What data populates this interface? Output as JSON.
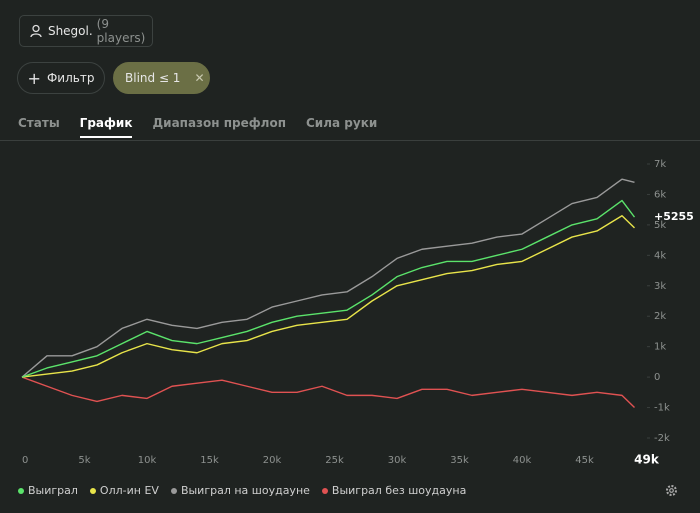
{
  "header": {
    "player": "Shegol.",
    "players_note": "(9 players)"
  },
  "filters": {
    "add": "Фильтр",
    "chip": "Blind ≤ 1"
  },
  "tabs": [
    "Статы",
    "График",
    "Диапазон префлоп",
    "Сила руки"
  ],
  "active_tab": 1,
  "chart_data": {
    "type": "line",
    "x": [
      0,
      2000,
      4000,
      6000,
      8000,
      10000,
      12000,
      14000,
      16000,
      18000,
      20000,
      22000,
      24000,
      26000,
      28000,
      30000,
      32000,
      34000,
      36000,
      38000,
      40000,
      42000,
      44000,
      46000,
      48000,
      49000
    ],
    "xlim": [
      0,
      50000
    ],
    "xticks": [
      0,
      {
        "value": 5000,
        "label": "5k"
      },
      {
        "value": 10000,
        "label": "10k"
      },
      {
        "value": 15000,
        "label": "15k"
      },
      {
        "value": 20000,
        "label": "20k"
      },
      {
        "value": 25000,
        "label": "25k"
      },
      {
        "value": 30000,
        "label": "30k"
      },
      {
        "value": 35000,
        "label": "35k"
      },
      {
        "value": 40000,
        "label": "40k"
      },
      {
        "value": 45000,
        "label": "45k"
      },
      {
        "value": 49000,
        "label": "49k"
      }
    ],
    "ylim": [
      -2000,
      7000
    ],
    "yticks": [
      {
        "value": -2000,
        "label": "-2k"
      },
      {
        "value": -1000,
        "label": "-1k"
      },
      0,
      {
        "value": 1000,
        "label": "1k"
      },
      {
        "value": 2000,
        "label": "2k"
      },
      {
        "value": 3000,
        "label": "3k"
      },
      {
        "value": 4000,
        "label": "4k"
      },
      {
        "value": 5000,
        "label": "5k"
      },
      {
        "value": 6000,
        "label": "6k"
      },
      {
        "value": 7000,
        "label": "7k"
      }
    ],
    "series": [
      {
        "name": "Выиграл",
        "color": "#5be36b",
        "end_label": "+5255",
        "values": [
          0,
          300,
          500,
          700,
          1100,
          1500,
          1200,
          1100,
          1300,
          1500,
          1800,
          2000,
          2100,
          2200,
          2700,
          3300,
          3600,
          3800,
          3800,
          4000,
          4200,
          4600,
          5000,
          5200,
          5800,
          5255
        ]
      },
      {
        "name": "Олл-ин EV",
        "color": "#e8e44a",
        "values": [
          0,
          100,
          200,
          400,
          800,
          1100,
          900,
          800,
          1100,
          1200,
          1500,
          1700,
          1800,
          1900,
          2500,
          3000,
          3200,
          3400,
          3500,
          3700,
          3800,
          4200,
          4600,
          4800,
          5300,
          4900
        ]
      },
      {
        "name": "Выиграл на шоудауне",
        "color": "#9a9a9a",
        "values": [
          0,
          700,
          700,
          1000,
          1600,
          1900,
          1700,
          1600,
          1800,
          1900,
          2300,
          2500,
          2700,
          2800,
          3300,
          3900,
          4200,
          4300,
          4400,
          4600,
          4700,
          5200,
          5700,
          5900,
          6500,
          6400
        ]
      },
      {
        "name": "Выиграл без шоудауна",
        "color": "#e05252",
        "values": [
          0,
          -300,
          -600,
          -800,
          -600,
          -700,
          -300,
          -200,
          -100,
          -300,
          -500,
          -500,
          -300,
          -600,
          -600,
          -700,
          -400,
          -400,
          -600,
          -500,
          -400,
          -500,
          -600,
          -500,
          -600,
          -1000
        ]
      }
    ]
  }
}
